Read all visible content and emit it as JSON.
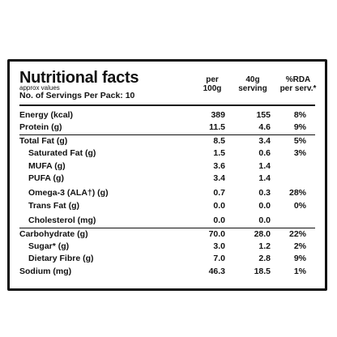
{
  "title": "Nutritional facts",
  "approx": "approx values",
  "servings": "No. of Servings Per Pack: 10",
  "columns": {
    "per_100g_line1": "per",
    "per_100g_line2": "100g",
    "serving_line1": "40g",
    "serving_line2": "serving",
    "rda_line1": "%RDA",
    "rda_line2": "per serv.*"
  },
  "rows": [
    {
      "label": "Energy (kcal)",
      "per100": "389",
      "serving": "155",
      "rda": "8%"
    },
    {
      "label": "Protein (g)",
      "per100": "11.5",
      "serving": "4.6",
      "rda": "9%"
    },
    {
      "label": "Total Fat (g)",
      "per100": "8.5",
      "serving": "3.4",
      "rda": "5%"
    },
    {
      "label": "Saturated Fat (g)",
      "per100": "1.5",
      "serving": "0.6",
      "rda": "3%"
    },
    {
      "label": "MUFA (g)",
      "per100": "3.6",
      "serving": "1.4",
      "rda": ""
    },
    {
      "label": "PUFA (g)",
      "per100": "3.4",
      "serving": "1.4",
      "rda": ""
    },
    {
      "label": "Omega-3 (ALA†) (g)",
      "per100": "0.7",
      "serving": "0.3",
      "rda": "28%"
    },
    {
      "label": "Trans Fat (g)",
      "per100": "0.0",
      "serving": "0.0",
      "rda": "0%"
    },
    {
      "label": "Cholesterol (mg)",
      "per100": "0.0",
      "serving": "0.0",
      "rda": ""
    },
    {
      "label": "Carbohydrate (g)",
      "per100": "70.0",
      "serving": "28.0",
      "rda": "22%"
    },
    {
      "label": "Sugar* (g)",
      "per100": "3.0",
      "serving": "1.2",
      "rda": "2%"
    },
    {
      "label": "Dietary Fibre (g)",
      "per100": "7.0",
      "serving": "2.8",
      "rda": "9%"
    },
    {
      "label": "Sodium (mg)",
      "per100": "46.3",
      "serving": "18.5",
      "rda": "1%"
    }
  ]
}
